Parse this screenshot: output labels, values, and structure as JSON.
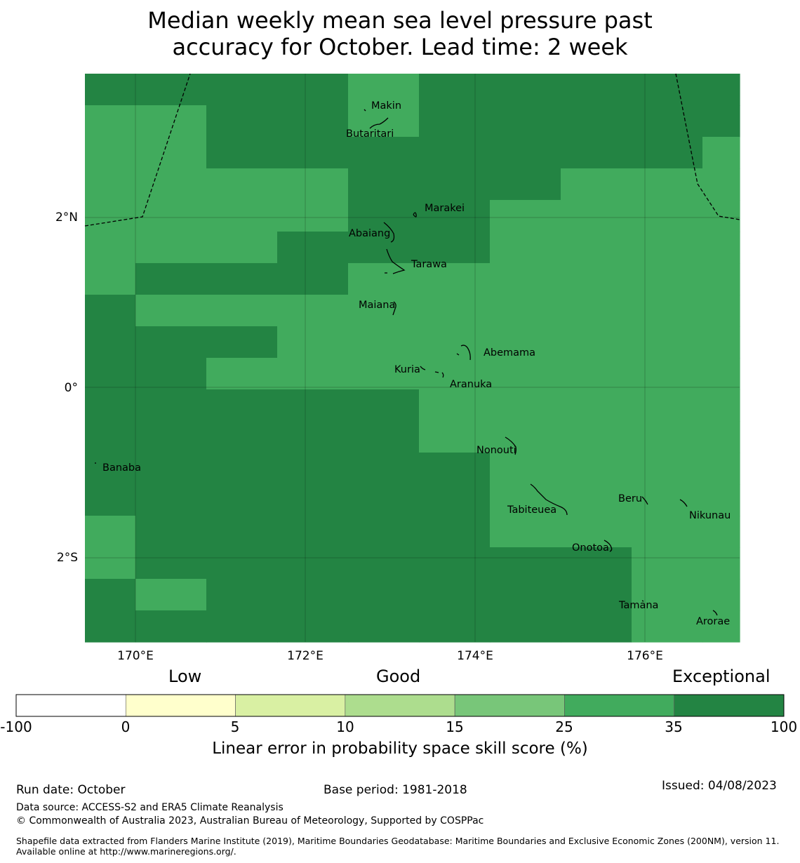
{
  "title": {
    "line1": "Median weekly mean sea level pressure past",
    "line2": "accuracy for October. Lead time: 2 week"
  },
  "map": {
    "lon_ticks": [
      "170°E",
      "172°E",
      "174°E",
      "176°E"
    ],
    "lat_ticks": [
      "2°N",
      "0°",
      "2°S"
    ],
    "places": [
      "Makin",
      "Butaritari",
      "Marakei",
      "Abaiang",
      "Tarawa",
      "Maiana",
      "Abemama",
      "Kuria",
      "Aranuka",
      "Nonouti",
      "Banaba",
      "Tabiteuea",
      "Beru",
      "Nikunau",
      "Onotoa",
      "Tamana",
      "Arorae"
    ],
    "grid_legend": "0 = class 25–35, 1 = class 35–100",
    "grid": [
      [
        1,
        1,
        1,
        1,
        0,
        1,
        1,
        1,
        1,
        1
      ],
      [
        0,
        0,
        1,
        1,
        0,
        1,
        1,
        1,
        1,
        1
      ],
      [
        0,
        0,
        1,
        1,
        1,
        1,
        1,
        1,
        1,
        0
      ],
      [
        0,
        0,
        0,
        0,
        1,
        1,
        1,
        0,
        0,
        0
      ],
      [
        0,
        0,
        0,
        0,
        1,
        1,
        0,
        0,
        0,
        0
      ],
      [
        0,
        0,
        0,
        1,
        1,
        1,
        0,
        0,
        0,
        0
      ],
      [
        0,
        1,
        1,
        1,
        0,
        0,
        0,
        0,
        0,
        0
      ],
      [
        1,
        0,
        0,
        0,
        0,
        0,
        0,
        0,
        0,
        0
      ],
      [
        1,
        1,
        1,
        0,
        0,
        0,
        0,
        0,
        0,
        0
      ],
      [
        1,
        1,
        0,
        0,
        0,
        0,
        0,
        0,
        0,
        0
      ],
      [
        1,
        1,
        1,
        1,
        1,
        0,
        0,
        0,
        0,
        0
      ],
      [
        1,
        1,
        1,
        1,
        1,
        0,
        0,
        0,
        0,
        0
      ],
      [
        1,
        1,
        1,
        1,
        1,
        1,
        0,
        0,
        0,
        0
      ],
      [
        1,
        1,
        1,
        1,
        1,
        1,
        0,
        0,
        0,
        0
      ],
      [
        0,
        1,
        1,
        1,
        1,
        1,
        0,
        0,
        0,
        0
      ],
      [
        0,
        1,
        1,
        1,
        1,
        1,
        1,
        1,
        0,
        0
      ],
      [
        1,
        0,
        1,
        1,
        1,
        1,
        1,
        1,
        0,
        0
      ],
      [
        1,
        1,
        1,
        1,
        1,
        1,
        1,
        1,
        0,
        0
      ]
    ]
  },
  "colorbar": {
    "categories": [
      "Low",
      "Good",
      "Exceptional"
    ],
    "ticks": [
      "-100",
      "0",
      "5",
      "10",
      "15",
      "25",
      "35",
      "100"
    ],
    "colors": [
      "#ffffff",
      "#ffffcc",
      "#d9f0a3",
      "#addd8e",
      "#78c679",
      "#41ab5d",
      "#238443"
    ],
    "label": "Linear error in probability space skill score (%)"
  },
  "footer": {
    "run_date": "Run date: October",
    "base_period": "Base period: 1981-2018",
    "issued": "Issued: 04/08/2023",
    "data_source": "Data source: ACCESS-S2 and ERA5 Climate Reanalysis",
    "copyright": "© Commonwealth of Australia 2023, Australian Bureau of Meteorology, Supported by COSPPac",
    "shapefile": "Shapefile data extracted from Flanders Marine Institute (2019), Maritime Boundaries Geodatabase: Maritime Boundaries and Exclusive Economic Zones (200NM), version 11. Available online at http://www.marineregions.org/."
  }
}
